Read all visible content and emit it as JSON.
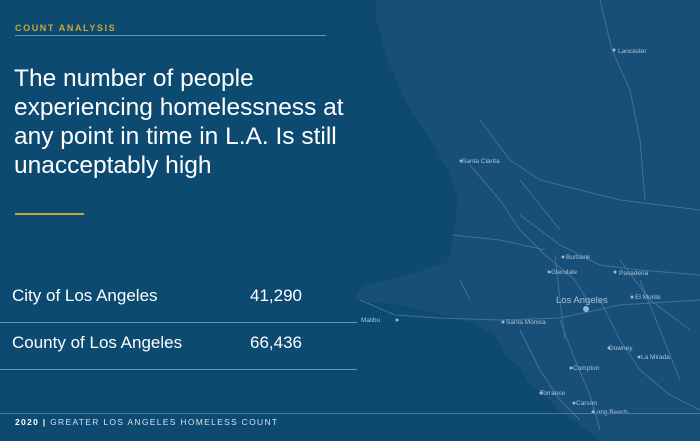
{
  "section_label": "COUNT ANALYSIS",
  "headline": "The number of people experiencing homelessness at any point in time in L.A. Is still unacceptably high",
  "stats": [
    {
      "label": "City of Los Angeles",
      "value": "41,290"
    },
    {
      "label": "County of Los Angeles",
      "value": "66,436"
    }
  ],
  "footer": {
    "year": "2020",
    "separator": "|",
    "title": "GREATER LOS ANGELES HOMELESS COUNT"
  },
  "map": {
    "labels": {
      "lancaster": "Lancaster",
      "santa_clarita": "Santa Clarita",
      "burbank": "Burbank",
      "glendale": "Glendale",
      "pasadena": "Pasadena",
      "los_angeles": "Los Angeles",
      "el_monte": "El Monte",
      "malibu": "Malibu",
      "santa_monica": "Santa Monica",
      "downey": "Downey",
      "la_mirada": "La Mirada",
      "compton": "Compton",
      "torrance": "Torrance",
      "carson": "Carson",
      "long_beach": "Long Beach"
    }
  },
  "colors": {
    "background": "#0c4a72",
    "land": "#164f79",
    "accent": "#c9a82c",
    "text": "#ffffff"
  }
}
